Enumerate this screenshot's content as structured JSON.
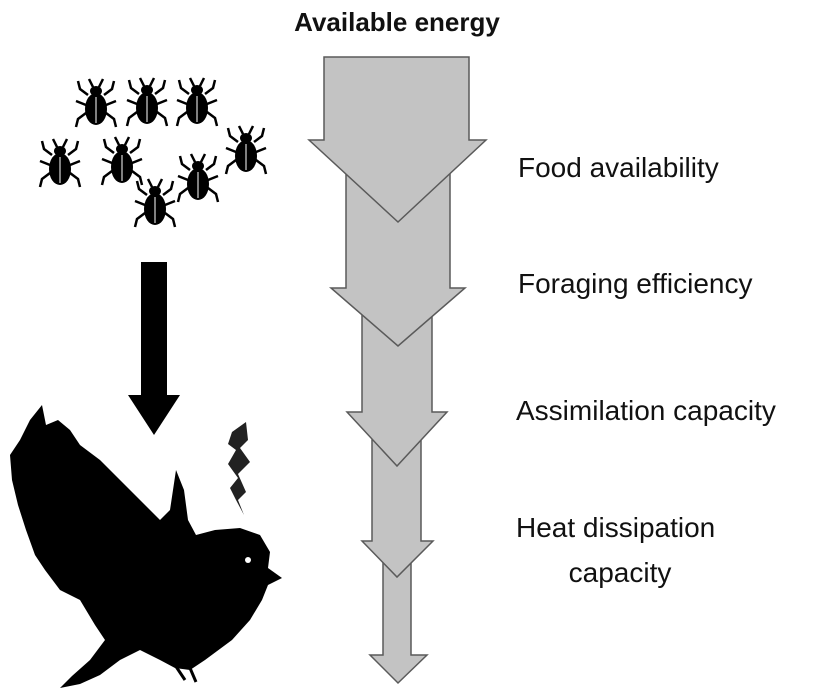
{
  "title": "Available energy",
  "labels": [
    [
      "Food availability"
    ],
    [
      "Foraging efficiency"
    ],
    [
      "Assimilation capacity"
    ],
    [
      "Heat dissipation",
      "capacity"
    ]
  ]
}
